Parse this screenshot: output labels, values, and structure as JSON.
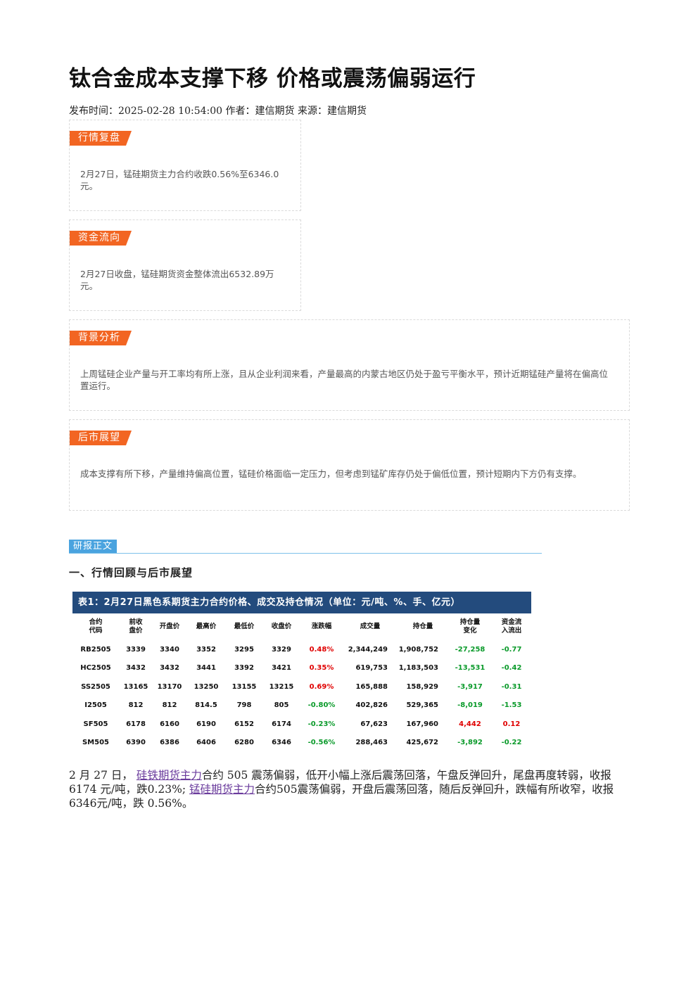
{
  "article": {
    "title": "钛合金成本支撑下移 价格或震荡偏弱运行",
    "meta": "发布时间：2025-02-28 10:54:00 作者：建信期货 来源：建信期货"
  },
  "boxes": {
    "review": {
      "tag": "行情复盘",
      "text": "2月27日，锰硅期货主力合约收跌0.56%至6346.0元。"
    },
    "flow": {
      "tag": "资金流向",
      "text": "2月27日收盘，锰硅期货资金整体流出6532.89万元。"
    },
    "background": {
      "tag": "背景分析",
      "text": "上周锰硅企业产量与开工率均有所上涨，且从企业利润来看，产量最高的内蒙古地区仍处于盈亏平衡水平，预计近期锰硅产量将在偏高位置运行。"
    },
    "outlook": {
      "tag": "后市展望",
      "text": "成本支撑有所下移，产量维持偏高位置，锰硅价格面临一定压力，但考虑到锰矿库存仍处于偏低位置，预计短期内下方仍有支撑。"
    }
  },
  "section": {
    "tag": "研报正文",
    "subhead": "一、行情回顾与后市展望"
  },
  "table": {
    "caption": "表1：2月27日黑色系期货主力合约价格、成交及持仓情况（单位：元/吨、%、手、亿元）",
    "headers": [
      "合约\n代码",
      "前收\n盘价",
      "开盘价",
      "最高价",
      "最低价",
      "收盘价",
      "涨跌幅",
      "成交量",
      "持仓量",
      "持仓量\n变化",
      "资金流\n入流出"
    ],
    "rows": [
      [
        "RB2505",
        "3339",
        "3340",
        "3352",
        "3295",
        "3329",
        "0.48%",
        "2,344,249",
        "1,908,752",
        "-27,258",
        "-0.77"
      ],
      [
        "HC2505",
        "3432",
        "3432",
        "3441",
        "3392",
        "3421",
        "0.35%",
        "619,753",
        "1,183,503",
        "-13,531",
        "-0.42"
      ],
      [
        "SS2505",
        "13165",
        "13170",
        "13250",
        "13155",
        "13215",
        "0.69%",
        "165,888",
        "158,929",
        "-3,917",
        "-0.31"
      ],
      [
        "I2505",
        "812",
        "812",
        "814.5",
        "798",
        "805",
        "-0.80%",
        "402,826",
        "529,365",
        "-8,019",
        "-1.53"
      ],
      [
        "SF505",
        "6178",
        "6160",
        "6190",
        "6152",
        "6174",
        "-0.23%",
        "67,623",
        "167,960",
        "4,442",
        "0.12"
      ],
      [
        "SM505",
        "6390",
        "6386",
        "6406",
        "6280",
        "6346",
        "-0.56%",
        "288,463",
        "425,672",
        "-3,892",
        "-0.22"
      ]
    ],
    "colors": {
      "up": "#e00000",
      "down": "#0a9a2a"
    }
  },
  "body": {
    "p1_a": "2 月 27 日，",
    "link1": "硅铁期货主力",
    "p1_b": "合约 505 震荡偏弱，低开小幅上涨后震荡回落，午盘反弹回升，尾盘再度转弱，收报 6174 元/吨，跌0.23%;",
    "link2": "锰硅期货主力",
    "p1_c": "合约505震荡偏弱，开盘后震荡回落，随后反弹回升，跌幅有所收窄，收报6346元/吨，跌 0.56%。"
  }
}
